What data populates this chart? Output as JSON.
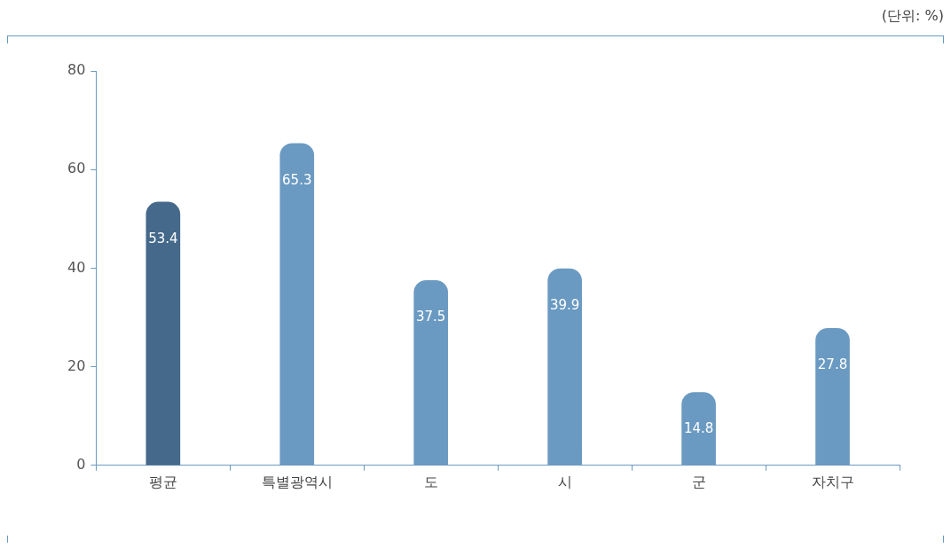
{
  "chart_data": {
    "type": "bar",
    "categories": [
      "평균",
      "특별광역시",
      "도",
      "시",
      "군",
      "자치구"
    ],
    "values": [
      53.4,
      65.3,
      37.5,
      39.9,
      14.8,
      27.8
    ],
    "colors": [
      "#44698a",
      "#6a9ac2",
      "#6a9ac2",
      "#6a9ac2",
      "#6a9ac2",
      "#6a9ac2"
    ],
    "ylim": [
      0,
      80
    ],
    "yticks": [
      0,
      20,
      40,
      60,
      80
    ],
    "grid": false,
    "legend": false,
    "data_labels": true,
    "annotations": [
      "(단위: %)"
    ]
  }
}
